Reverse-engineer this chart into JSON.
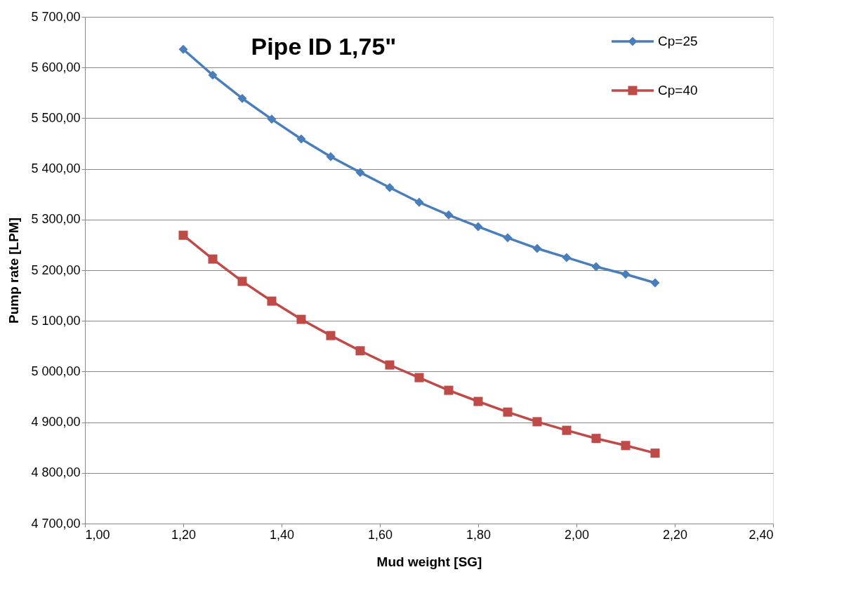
{
  "chart_data": {
    "type": "line",
    "title": "Pipe ID 1,75\"",
    "xlabel": "Mud weight [SG]",
    "ylabel": "Pump rate [LPM]",
    "x": [
      1.2,
      1.26,
      1.32,
      1.38,
      1.44,
      1.5,
      1.56,
      1.62,
      1.68,
      1.74,
      1.8,
      1.86,
      1.92,
      1.98,
      2.04,
      2.1,
      2.16
    ],
    "series": [
      {
        "name": "Cp=25",
        "color": "#4a7ebb",
        "marker": "diamond",
        "values": [
          5636,
          5585,
          5539,
          5498,
          5459,
          5424,
          5393,
          5363,
          5334,
          5309,
          5286,
          5264,
          5243,
          5225,
          5207,
          5192,
          5175
        ]
      },
      {
        "name": "Cp=40",
        "color": "#be4b48",
        "marker": "square",
        "values": [
          5269,
          5222,
          5178,
          5139,
          5103,
          5071,
          5041,
          5013,
          4988,
          4963,
          4941,
          4920,
          4901,
          4884,
          4868,
          4854,
          4839
        ]
      }
    ],
    "xlim": [
      1.0,
      2.4
    ],
    "xticks": [
      {
        "value": 1.0,
        "label": "1,00"
      },
      {
        "value": 1.2,
        "label": "1,20"
      },
      {
        "value": 1.4,
        "label": "1,40"
      },
      {
        "value": 1.6,
        "label": "1,60"
      },
      {
        "value": 1.8,
        "label": "1,80"
      },
      {
        "value": 2.0,
        "label": "2,00"
      },
      {
        "value": 2.2,
        "label": "2,20"
      },
      {
        "value": 2.4,
        "label": "2,40"
      }
    ],
    "ylim": [
      4700,
      5700
    ],
    "yticks": [
      {
        "value": 4700,
        "label": "4 700,00"
      },
      {
        "value": 4800,
        "label": "4 800,00"
      },
      {
        "value": 4900,
        "label": "4 900,00"
      },
      {
        "value": 5000,
        "label": "5 000,00"
      },
      {
        "value": 5100,
        "label": "5 100,00"
      },
      {
        "value": 5200,
        "label": "5 200,00"
      },
      {
        "value": 5300,
        "label": "5 300,00"
      },
      {
        "value": 5400,
        "label": "5 400,00"
      },
      {
        "value": 5500,
        "label": "5 500,00"
      },
      {
        "value": 5600,
        "label": "5 600,00"
      },
      {
        "value": 5700,
        "label": "5 700,00"
      }
    ],
    "grid": "y",
    "legend": "top right",
    "line_style": "solid"
  }
}
